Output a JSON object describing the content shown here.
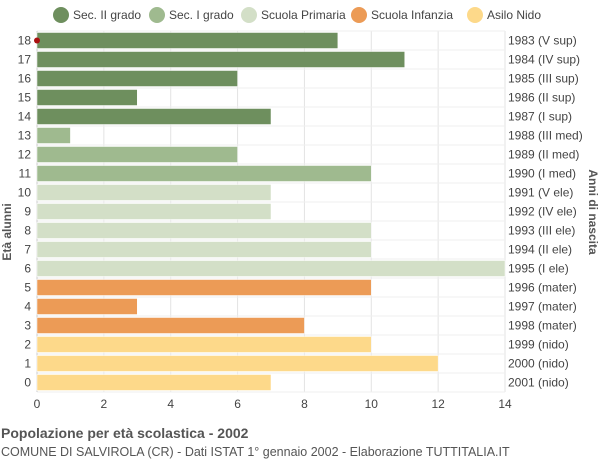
{
  "chart_data": {
    "type": "bar",
    "orientation": "horizontal",
    "title": "Popolazione per età scolastica - 2002",
    "subtitle": "COMUNE DI SALVIROLA (CR) - Dati ISTAT 1° gennaio 2002 - Elaborazione TUTTITALIA.IT",
    "ylabel": "Età alunni",
    "y2label": "Anni di nascita",
    "xlim": [
      0,
      14
    ],
    "xticks": [
      0,
      2,
      4,
      6,
      8,
      10,
      12,
      14
    ],
    "grid": true,
    "legend_position": "top",
    "series": [
      {
        "name": "Sec. II grado",
        "color": "#6e8f5e"
      },
      {
        "name": "Sec. I grado",
        "color": "#9fba8f"
      },
      {
        "name": "Scuola Primaria",
        "color": "#d3dfc7"
      },
      {
        "name": "Scuola Infanzia",
        "color": "#ec9b56"
      },
      {
        "name": "Asilo Nido",
        "color": "#fdd98a"
      }
    ],
    "bars": [
      {
        "age": "18",
        "birth": "1983 (V sup)",
        "value": 9,
        "series": 0
      },
      {
        "age": "17",
        "birth": "1984 (IV sup)",
        "value": 11,
        "series": 0
      },
      {
        "age": "16",
        "birth": "1985 (III sup)",
        "value": 6,
        "series": 0
      },
      {
        "age": "15",
        "birth": "1986 (II sup)",
        "value": 3,
        "series": 0
      },
      {
        "age": "14",
        "birth": "1987 (I sup)",
        "value": 7,
        "series": 0
      },
      {
        "age": "13",
        "birth": "1988 (III med)",
        "value": 1,
        "series": 1
      },
      {
        "age": "12",
        "birth": "1989 (II med)",
        "value": 6,
        "series": 1
      },
      {
        "age": "11",
        "birth": "1990 (I med)",
        "value": 10,
        "series": 1
      },
      {
        "age": "10",
        "birth": "1991 (V ele)",
        "value": 7,
        "series": 2
      },
      {
        "age": "9",
        "birth": "1992 (IV ele)",
        "value": 7,
        "series": 2
      },
      {
        "age": "8",
        "birth": "1993 (III ele)",
        "value": 10,
        "series": 2
      },
      {
        "age": "7",
        "birth": "1994 (II ele)",
        "value": 10,
        "series": 2
      },
      {
        "age": "6",
        "birth": "1995 (I ele)",
        "value": 14,
        "series": 2
      },
      {
        "age": "5",
        "birth": "1996 (mater)",
        "value": 10,
        "series": 3
      },
      {
        "age": "4",
        "birth": "1997 (mater)",
        "value": 3,
        "series": 3
      },
      {
        "age": "3",
        "birth": "1998 (mater)",
        "value": 8,
        "series": 3
      },
      {
        "age": "2",
        "birth": "1999 (nido)",
        "value": 10,
        "series": 4
      },
      {
        "age": "1",
        "birth": "2000 (nido)",
        "value": 12,
        "series": 4
      },
      {
        "age": "0",
        "birth": "2001 (nido)",
        "value": 7,
        "series": 4
      }
    ],
    "marker_color": "#aa1111"
  }
}
